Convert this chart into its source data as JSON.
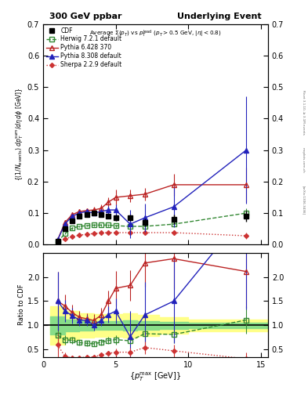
{
  "title_left": "300 GeV ppbar",
  "title_right": "Underlying Event",
  "right_label": "Rivet 3.1.10, ≥ 3.1M events",
  "inspire_label": "[arXiv:1306.3436]",
  "mcplots_label": "mcplots.cern.ch",
  "ylabel_main": "{(1/N_{events}) dp_T^{sum}/dη dφ [GeV]}",
  "ylabel_ratio": "Ratio to CDF",
  "xlabel": "{p_T^{max} [GeV]}",
  "CDF_x": [
    1.0,
    1.5,
    2.0,
    2.5,
    3.0,
    3.5,
    4.0,
    4.5,
    5.0,
    6.0,
    7.0,
    9.0,
    14.0
  ],
  "CDF_y": [
    0.01,
    0.05,
    0.075,
    0.09,
    0.095,
    0.1,
    0.095,
    0.09,
    0.085,
    0.085,
    0.07,
    0.08,
    0.09
  ],
  "CDF_yerr": [
    0.003,
    0.006,
    0.007,
    0.007,
    0.007,
    0.007,
    0.007,
    0.008,
    0.01,
    0.01,
    0.012,
    0.015,
    0.018
  ],
  "Herwig_x": [
    1.0,
    1.5,
    2.0,
    2.5,
    3.0,
    3.5,
    4.0,
    4.5,
    5.0,
    6.0,
    7.0,
    9.0,
    14.0
  ],
  "Herwig_y": [
    0.008,
    0.035,
    0.052,
    0.058,
    0.06,
    0.062,
    0.062,
    0.062,
    0.06,
    0.058,
    0.058,
    0.065,
    0.1
  ],
  "Herwig_yerr": [
    0.002,
    0.003,
    0.003,
    0.003,
    0.003,
    0.003,
    0.003,
    0.004,
    0.004,
    0.005,
    0.005,
    0.008,
    0.015
  ],
  "Pythia6_x": [
    1.0,
    1.5,
    2.0,
    2.5,
    3.0,
    3.5,
    4.0,
    4.5,
    5.0,
    6.0,
    7.0,
    9.0,
    14.0
  ],
  "Pythia6_y": [
    0.015,
    0.07,
    0.095,
    0.105,
    0.108,
    0.11,
    0.115,
    0.135,
    0.15,
    0.155,
    0.16,
    0.19,
    0.19
  ],
  "Pythia6_yerr": [
    0.004,
    0.008,
    0.008,
    0.008,
    0.008,
    0.01,
    0.012,
    0.015,
    0.025,
    0.02,
    0.02,
    0.035,
    0.055
  ],
  "Pythia8_x": [
    1.0,
    1.5,
    2.0,
    2.5,
    3.0,
    3.5,
    4.0,
    4.5,
    5.0,
    6.0,
    7.0,
    9.0,
    14.0
  ],
  "Pythia8_y": [
    0.015,
    0.065,
    0.09,
    0.1,
    0.105,
    0.1,
    0.105,
    0.11,
    0.11,
    0.065,
    0.085,
    0.12,
    0.3
  ],
  "Pythia8_yerr": [
    0.004,
    0.008,
    0.008,
    0.008,
    0.008,
    0.008,
    0.008,
    0.012,
    0.018,
    0.045,
    0.045,
    0.065,
    0.17
  ],
  "Sherpa_x": [
    1.0,
    1.5,
    2.0,
    2.5,
    3.0,
    3.5,
    4.0,
    4.5,
    5.0,
    6.0,
    7.0,
    9.0,
    14.0
  ],
  "Sherpa_y": [
    0.006,
    0.018,
    0.025,
    0.03,
    0.033,
    0.035,
    0.037,
    0.038,
    0.038,
    0.038,
    0.038,
    0.038,
    0.028
  ],
  "Sherpa_yerr": [
    0.002,
    0.003,
    0.003,
    0.003,
    0.003,
    0.003,
    0.003,
    0.004,
    0.005,
    0.006,
    0.006,
    0.007,
    0.01
  ],
  "band_x_edges": [
    0.5,
    1.5,
    2.5,
    3.5,
    4.5,
    5.5,
    6.5,
    8.0,
    10.0,
    15.5
  ],
  "band_green_lo": [
    0.82,
    0.88,
    0.9,
    0.91,
    0.91,
    0.9,
    0.91,
    0.93,
    0.95
  ],
  "band_green_hi": [
    1.18,
    1.12,
    1.1,
    1.09,
    1.09,
    1.1,
    1.09,
    1.07,
    1.05
  ],
  "band_yellow_lo": [
    0.6,
    0.7,
    0.75,
    0.77,
    0.76,
    0.75,
    0.78,
    0.83,
    0.88
  ],
  "band_yellow_hi": [
    1.4,
    1.3,
    1.25,
    1.23,
    1.24,
    1.25,
    1.22,
    1.17,
    1.12
  ],
  "ylim_main": [
    0.0,
    0.7
  ],
  "ylim_ratio": [
    0.35,
    2.5
  ],
  "xlim": [
    0.0,
    15.5
  ],
  "main_yticks": [
    0.0,
    0.1,
    0.2,
    0.3,
    0.4,
    0.5,
    0.6,
    0.7
  ],
  "ratio_yticks": [
    0.5,
    1.0,
    1.5,
    2.0
  ],
  "xticks": [
    0,
    5,
    10,
    15
  ]
}
